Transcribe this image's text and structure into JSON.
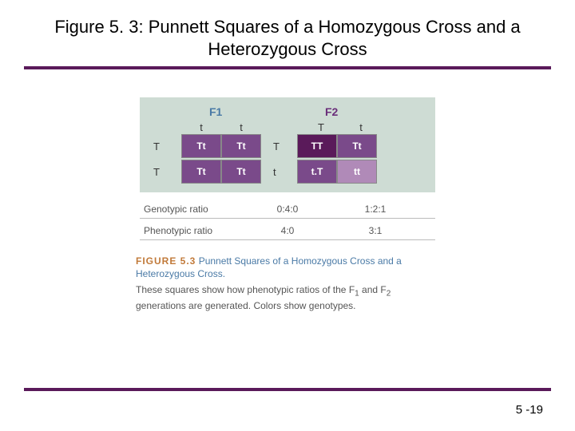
{
  "title": "Figure 5. 3:  Punnett Squares of a Homozygous Cross and a Heterozygous Cross",
  "rule_color": "#5a1a5a",
  "page_number": "5 -19",
  "figure": {
    "panel_bg": "#cedcd4",
    "gen1": {
      "label": "F1",
      "color": "#4a7aa6"
    },
    "gen2": {
      "label": "F2",
      "color": "#6a2e7a"
    },
    "f1_col_alleles": [
      "t",
      "t"
    ],
    "f1_row_alleles": [
      "T",
      "T"
    ],
    "f2_col_alleles": [
      "T",
      "t"
    ],
    "f2_row_alleles": [
      "T",
      "t"
    ],
    "f1_cells": [
      [
        {
          "txt": "Tt",
          "bg": "#7a4a8a"
        },
        {
          "txt": "Tt",
          "bg": "#7a4a8a"
        }
      ],
      [
        {
          "txt": "Tt",
          "bg": "#7a4a8a"
        },
        {
          "txt": "Tt",
          "bg": "#7a4a8a"
        }
      ]
    ],
    "f2_cells": [
      [
        {
          "txt": "TT",
          "bg": "#5a1a5a"
        },
        {
          "txt": "Tt",
          "bg": "#7a4a8a"
        }
      ],
      [
        {
          "txt": "t.T",
          "bg": "#7a4a8a"
        },
        {
          "txt": "tt",
          "bg": "#b08ab8"
        }
      ]
    ],
    "ratios": [
      {
        "label": "Genotypic ratio",
        "f1": "0:4:0",
        "f2": "1:2:1"
      },
      {
        "label": "Phenotypic ratio",
        "f1": "4:0",
        "f2": "3:1"
      }
    ]
  },
  "caption": {
    "fignum": "FIGURE 5.3",
    "title": "Punnett Squares of a Homozygous Cross and a Heterozygous Cross.",
    "desc_pre": "These squares show how phenotypic ratios of the F",
    "desc_mid": " and F",
    "desc_post": " generations are generated. Colors show genotypes.",
    "sub1": "1",
    "sub2": "2"
  }
}
